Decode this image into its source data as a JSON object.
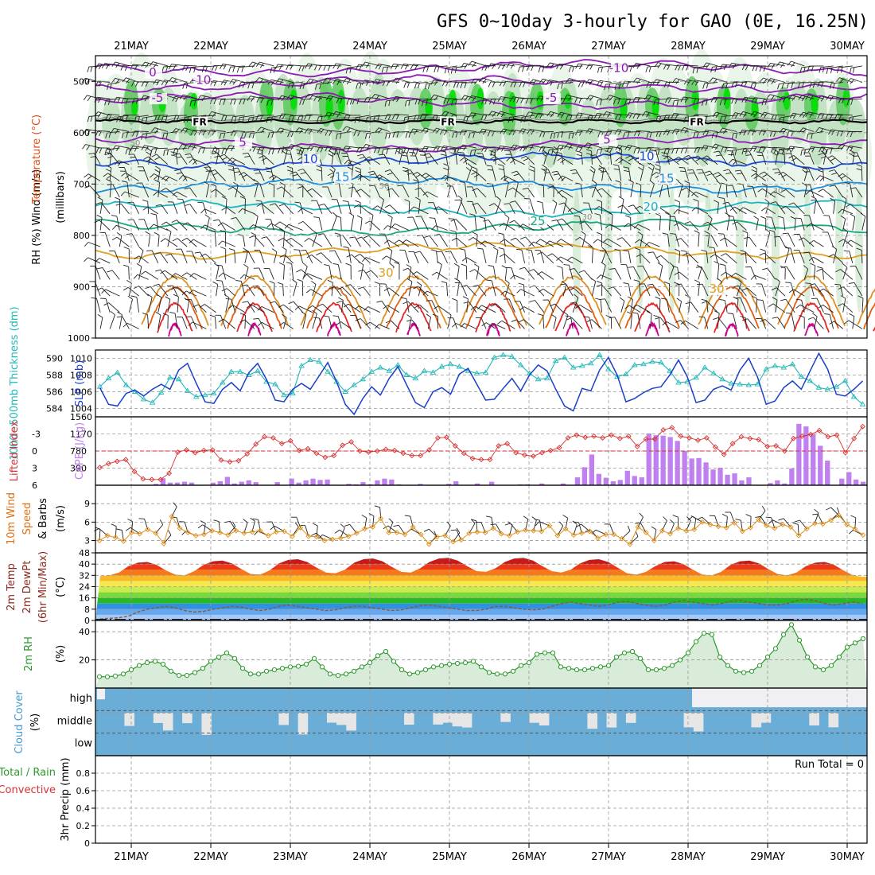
{
  "title": "GFS 0~10day 3-hourly for GAO (0E, 16.25N)",
  "dates": [
    "21MAY",
    "22MAY",
    "23MAY",
    "24MAY",
    "25MAY",
    "26MAY",
    "27MAY",
    "28MAY",
    "29MAY",
    "30MAY"
  ],
  "panel_labels": {
    "upper": {
      "rh": "RH (%)",
      "temperature": "Temperature (°C)",
      "wind": "Wind (m/s)",
      "unit": "(millibars)"
    },
    "slp": {
      "thickness": "1000~500mb Thickness (dm)",
      "slp": "SLP (mb)"
    },
    "cape": {
      "li": "Lifted Index",
      "cape": "CAPE (J/kg)"
    },
    "wind10m": {
      "a": "10m Wind",
      "b": "Speed",
      "unit": "(m/s)",
      "barbs": "& Barbs"
    },
    "temp": {
      "a": "2m Temp",
      "b": "2m DewPt",
      "c": "(6hr Min/Max)",
      "unit": "(°C)"
    },
    "rh2m": {
      "a": "2m RH",
      "unit": "(%)"
    },
    "cloud": {
      "a": "Cloud Cover",
      "unit": "(%)",
      "high": "high",
      "middle": "middle",
      "low": "low"
    },
    "precip": {
      "a": "Total / Rain",
      "b": "Convective",
      "c": "3hr Precip",
      "unit": "(mm)",
      "run_total": "Run Total = 0"
    }
  },
  "colors": {
    "rh_light": "#e8f4e8",
    "rh_mid": "#b8dcb8",
    "rh_dark": "#5bc85b",
    "rh_bright": "#00e000",
    "slp_line": "#1a3fc8",
    "thickness_line": "#22b8b8",
    "li_line": "#d83030",
    "cape_bar": "#c080f0",
    "wind_speed": "#e0901c",
    "rh2m_line": "#2c9a2c",
    "rh2m_fill": "#cfe6cf",
    "cloud": "#6aaed8",
    "cloud_clear": "#e6e6e6"
  },
  "chart_data": [
    {
      "type": "heatmap",
      "name": "upper-air",
      "y_ticks": [
        500,
        600,
        700,
        800,
        900,
        1000
      ],
      "ylim": [
        450,
        1000
      ],
      "isotherm_labels": [
        {
          "t": 0.27,
          "p": 490,
          "text": "0"
        },
        {
          "t": 0.33,
          "p": 540,
          "text": "-5"
        },
        {
          "t": 0.88,
          "p": 505,
          "text": "-10"
        },
        {
          "t": 1.4,
          "p": 627,
          "text": "5"
        },
        {
          "t": 2.25,
          "p": 659,
          "text": "10"
        },
        {
          "t": 2.65,
          "p": 694,
          "text": "15"
        },
        {
          "t": 5.28,
          "p": 540,
          "text": "-5"
        },
        {
          "t": 5.98,
          "p": 621,
          "text": "5"
        },
        {
          "t": 6.73,
          "p": 697,
          "text": "15"
        },
        {
          "t": 6.48,
          "p": 654,
          "text": "10"
        },
        {
          "t": 6.53,
          "p": 752,
          "text": "20"
        },
        {
          "t": 5.11,
          "p": 780,
          "text": "25"
        },
        {
          "t": 3.2,
          "p": 881,
          "text": "30"
        },
        {
          "t": 7.36,
          "p": 912,
          "text": "30"
        },
        {
          "t": 6.13,
          "p": 482,
          "text": "-10"
        }
      ],
      "fr_labels": [
        {
          "t": 0.86,
          "text": "FR"
        },
        {
          "t": 3.98,
          "text": "FR"
        },
        {
          "t": 7.11,
          "text": "FR"
        }
      ],
      "rh_labels": [
        {
          "t": 0.05,
          "p": 625,
          "text": "50"
        },
        {
          "t": 3.18,
          "p": 709,
          "text": "50"
        },
        {
          "t": 5.73,
          "p": 769,
          "text": "30"
        },
        {
          "t": 8.13,
          "p": 718,
          "text": "30"
        }
      ]
    },
    {
      "type": "line",
      "name": "slp-thickness",
      "slp_ticks": [
        1004,
        1006,
        1008,
        1010
      ],
      "thickness_ticks": [
        584,
        586,
        588,
        590
      ],
      "series": [
        {
          "name": "SLP (mb)",
          "values": [
            1006.5,
            1004.5,
            1004.3,
            1005.8,
            1006.2,
            1005.5,
            1006.3,
            1006.9,
            1006.3,
            1008.6,
            1009.4,
            1007.0,
            1004.8,
            1004.6,
            1006.3,
            1007.1,
            1006.1,
            1008.3,
            1009.4,
            1007.5,
            1005.0,
            1004.8,
            1006.3,
            1007.0,
            1006.3,
            1007.9,
            1009.5,
            1007.2,
            1004.5,
            1003.3,
            1005.2,
            1006.6,
            1005.6,
            1007.6,
            1009.0,
            1006.8,
            1004.7,
            1004.1,
            1006.0,
            1006.5,
            1005.7,
            1008.1,
            1008.8,
            1006.9,
            1005.0,
            1005.1,
            1006.4,
            1007.6,
            1006.1,
            1008.0,
            1009.2,
            1008.5,
            1006.3,
            1004.3,
            1003.7,
            1006.4,
            1006.1,
            1008.6,
            1010.1,
            1008.0,
            1004.8,
            1005.2,
            1005.9,
            1006.4,
            1006.6,
            1008.0,
            1009.8,
            1007.8,
            1004.7,
            1005.0,
            1006.3,
            1006.7,
            1006.2,
            1008.6,
            1010.0,
            1007.8,
            1004.5,
            1004.9,
            1006.5,
            1007.3,
            1006.3,
            1008.5,
            1010.6,
            1008.7,
            1005.7,
            1005.5,
            1006.3,
            1007.3
          ]
        },
        {
          "name": "1000~500mb Thickness (dm)",
          "values": [
            586.6,
            587.6,
            588.3,
            586.8,
            586.0,
            585.1,
            584.7,
            585.9,
            587.7,
            587.5,
            586.1,
            585.4,
            585.6,
            585.8,
            587.1,
            588.4,
            588.4,
            588.0,
            588.5,
            587.2,
            586.9,
            585.6,
            585.8,
            589.1,
            589.8,
            589.6,
            588.4,
            587.2,
            586.0,
            586.8,
            587.5,
            588.4,
            588.9,
            588.5,
            589.2,
            588.0,
            587.6,
            588.5,
            588.3,
            589.0,
            589.3,
            589.0,
            588.5,
            588.2,
            588.3,
            590.1,
            590.4,
            590.2,
            589.2,
            588.2,
            587.5,
            587.6,
            589.7,
            590.1,
            588.9,
            589.1,
            589.4,
            590.4,
            588.7,
            587.8,
            588.1,
            589.2,
            589.3,
            589.6,
            589.5,
            588.5,
            587.1,
            587.2,
            587.7,
            588.9,
            588.2,
            587.5,
            587.0,
            586.9,
            586.8,
            586.9,
            588.7,
            589.1,
            588.9,
            589.3,
            587.8,
            587.3,
            586.5,
            586.3,
            586.6,
            587.3,
            585.4,
            584.5
          ]
        }
      ]
    },
    {
      "type": "bar",
      "name": "cape-li",
      "li_ticks": [
        -3,
        0,
        3,
        6
      ],
      "cape_ticks": [
        390,
        780,
        1170,
        1560
      ],
      "series": [
        {
          "name": "Lifted Index",
          "values": [
            2.9,
            2.2,
            1.8,
            1.5,
            3.6,
            4.9,
            5.0,
            5.0,
            3.9,
            0.2,
            -0.2,
            0.3,
            -0.1,
            -0.2,
            1.6,
            1.9,
            1.7,
            0.5,
            -1.2,
            -2.5,
            -2.3,
            -1.3,
            -1.8,
            -0.1,
            -0.4,
            0.4,
            1.1,
            0.8,
            -1.0,
            -1.6,
            0.0,
            0.2,
            -0.0,
            -0.3,
            -0.1,
            0.4,
            0.8,
            0.8,
            -0.2,
            -2.3,
            -2.4,
            -0.9,
            0.4,
            1.3,
            1.5,
            1.5,
            -0.9,
            -1.3,
            0.3,
            0.7,
            0.9,
            0.3,
            -0.1,
            -0.6,
            -2.3,
            -2.8,
            -2.4,
            -2.6,
            -2.3,
            -2.8,
            -2.2,
            -2.6,
            -0.8,
            -2.1,
            -2.1,
            -3.7,
            -4.1,
            -2.6,
            -2.3,
            -1.9,
            -2.3,
            -0.7,
            0.6,
            -1.3,
            -2.5,
            -2.2,
            -2.0,
            -0.8,
            -0.9,
            -0.0,
            -2.2,
            -2.6,
            -2.9,
            -3.6,
            -2.5,
            -2.8,
            0.3,
            -2.2,
            -4.3
          ]
        },
        {
          "name": "CAPE (J/kg)",
          "values": [
            0,
            0,
            0,
            0,
            0,
            0,
            0,
            0,
            30,
            160,
            60,
            60,
            80,
            60,
            0,
            10,
            60,
            90,
            190,
            40,
            80,
            110,
            70,
            0,
            0,
            70,
            0,
            150,
            60,
            110,
            150,
            120,
            130,
            10,
            0,
            30,
            20,
            70,
            20,
            110,
            150,
            130,
            20,
            0,
            0,
            30,
            0,
            0,
            0,
            30,
            90,
            0,
            0,
            40,
            0,
            80,
            0,
            0,
            0,
            20,
            20,
            0,
            40,
            0,
            0,
            40,
            0,
            180,
            410,
            700,
            260,
            170,
            90,
            120,
            330,
            210,
            180,
            1180,
            1140,
            1130,
            1100,
            1010,
            780,
            610,
            620,
            520,
            360,
            400,
            240,
            270,
            110,
            180,
            10,
            0,
            50,
            110,
            40,
            380,
            1400,
            1340,
            1160,
            900,
            560,
            0,
            150,
            300,
            130,
            80
          ]
        }
      ]
    },
    {
      "type": "line",
      "name": "10m-wind",
      "y_ticks": [
        3,
        6,
        9
      ],
      "series": [
        {
          "name": "Speed",
          "values": [
            3.0,
            3.8,
            3.5,
            2.9,
            4.3,
            4.1,
            4.8,
            4.2,
            2.5,
            6.9,
            5.0,
            4.3,
            3.8,
            4.0,
            4.6,
            4.3,
            3.9,
            4.6,
            4.2,
            4.4,
            4.6,
            3.8,
            4.4,
            4.5,
            3.7,
            5.1,
            3.7,
            3.6,
            3.0,
            3.2,
            3.4,
            3.7,
            4.2,
            4.9,
            5.2,
            6.6,
            4.3,
            4.3,
            4.0,
            5.2,
            4.0,
            2.4,
            3.6,
            3.8,
            2.8,
            3.1,
            4.2,
            4.4,
            4.3,
            5.0,
            4.1,
            3.8,
            4.4,
            4.7,
            4.6,
            4.5,
            5.4,
            3.8,
            4.9,
            3.9,
            4.2,
            4.5,
            3.4,
            4.0,
            4.0,
            3.3,
            2.4,
            5.2,
            4.3,
            3.0,
            4.6,
            4.1,
            5.0,
            4.6,
            4.8,
            6.0,
            5.6,
            5.3,
            5.1,
            5.9,
            4.5,
            5.1,
            6.4,
            5.4,
            5.0,
            5.6,
            5.2,
            3.8,
            4.9,
            5.8,
            5.7,
            6.3,
            7.1,
            5.6,
            4.9,
            3.9
          ]
        }
      ]
    },
    {
      "type": "area",
      "name": "2m-temp",
      "y_ticks": [
        0,
        8,
        16,
        24,
        32,
        40,
        48
      ],
      "band_colors": [
        "#a8c8f8",
        "#64a8f0",
        "#3090e8",
        "#28b828",
        "#7ad83a",
        "#c8ec50",
        "#f8e850",
        "#f8b828",
        "#f87818",
        "#e83a18",
        "#c81818",
        "#6a3a30"
      ],
      "series": [
        {
          "name": "2m Temp",
          "values": [
            31.5,
            32,
            34,
            38.5,
            41,
            41.5,
            39.5,
            35.5,
            32.5,
            32,
            35,
            39.5,
            42,
            42.5,
            40.5,
            36.5,
            33,
            32.5,
            35.5,
            40.5,
            43,
            43.5,
            41.5,
            37.5,
            34,
            33.5,
            36,
            41,
            43.5,
            44,
            42,
            38,
            34.5,
            34,
            37,
            41.5,
            44,
            44.5,
            42.5,
            38.5,
            35,
            34.5,
            37,
            41.5,
            44,
            44.5,
            42.5,
            38.5,
            35,
            34,
            36,
            40.5,
            43,
            43.5,
            41.5,
            37.5,
            33.5,
            32.5,
            34.5,
            38.5,
            41.5,
            42,
            40,
            36,
            32.5,
            32,
            34.5,
            39.5,
            42,
            42.5,
            40.5,
            36.5,
            33,
            32,
            34,
            38.5,
            41,
            41.5,
            39.5,
            35.5,
            32,
            31
          ]
        },
        {
          "name": "2m DewPt",
          "values": [
            1,
            1.5,
            2,
            3,
            6,
            8,
            9,
            10,
            9,
            7,
            6,
            6.5,
            8,
            9,
            10,
            9.5,
            8,
            7,
            8,
            10,
            11,
            10,
            9,
            8,
            7,
            7.5,
            9,
            10,
            10,
            9,
            8,
            7,
            7.5,
            9,
            10.5,
            11,
            10,
            9,
            8,
            7,
            7,
            8,
            10,
            10,
            9,
            8,
            7.5,
            8,
            10,
            12,
            13,
            12,
            11,
            10,
            11,
            13,
            13.5,
            12,
            11,
            10,
            11,
            13,
            14,
            13,
            12,
            11,
            12,
            13.5,
            14,
            13,
            12,
            11,
            11,
            12,
            14,
            15,
            14,
            12,
            11,
            12,
            13,
            12
          ]
        }
      ]
    },
    {
      "type": "area",
      "name": "2m-rh",
      "y_ticks": [
        20,
        40
      ],
      "series": [
        {
          "name": "2m RH",
          "values": [
            8.1,
            8,
            8.5,
            10,
            13,
            16,
            18,
            19,
            17,
            12,
            9,
            9,
            11,
            14,
            19,
            22,
            25,
            21,
            14,
            10,
            10,
            12,
            13,
            14,
            15,
            15.5,
            17,
            21,
            15,
            10,
            9,
            10,
            12,
            15,
            18,
            23,
            26,
            19,
            13,
            10,
            11,
            13,
            15,
            16,
            17,
            17.5,
            18,
            19,
            15,
            11,
            10,
            10,
            12,
            16,
            18,
            24,
            25,
            25,
            15,
            14,
            13,
            13,
            14,
            15,
            16,
            22,
            25,
            26,
            21,
            13,
            13,
            14,
            16,
            20,
            25,
            33,
            39,
            38,
            22,
            16,
            12,
            11,
            12,
            16,
            22,
            28,
            38,
            45,
            34,
            22,
            15,
            13,
            16,
            22,
            29,
            32,
            35
          ]
        }
      ]
    },
    {
      "type": "heatmap",
      "name": "cloud-cover",
      "y_categories": [
        "high",
        "middle",
        "low"
      ]
    },
    {
      "type": "bar",
      "name": "3hr-precip",
      "y_ticks": [
        0,
        0.2,
        0.4,
        0.6,
        0.8
      ],
      "ylim": [
        0,
        1
      ],
      "values": []
    }
  ]
}
